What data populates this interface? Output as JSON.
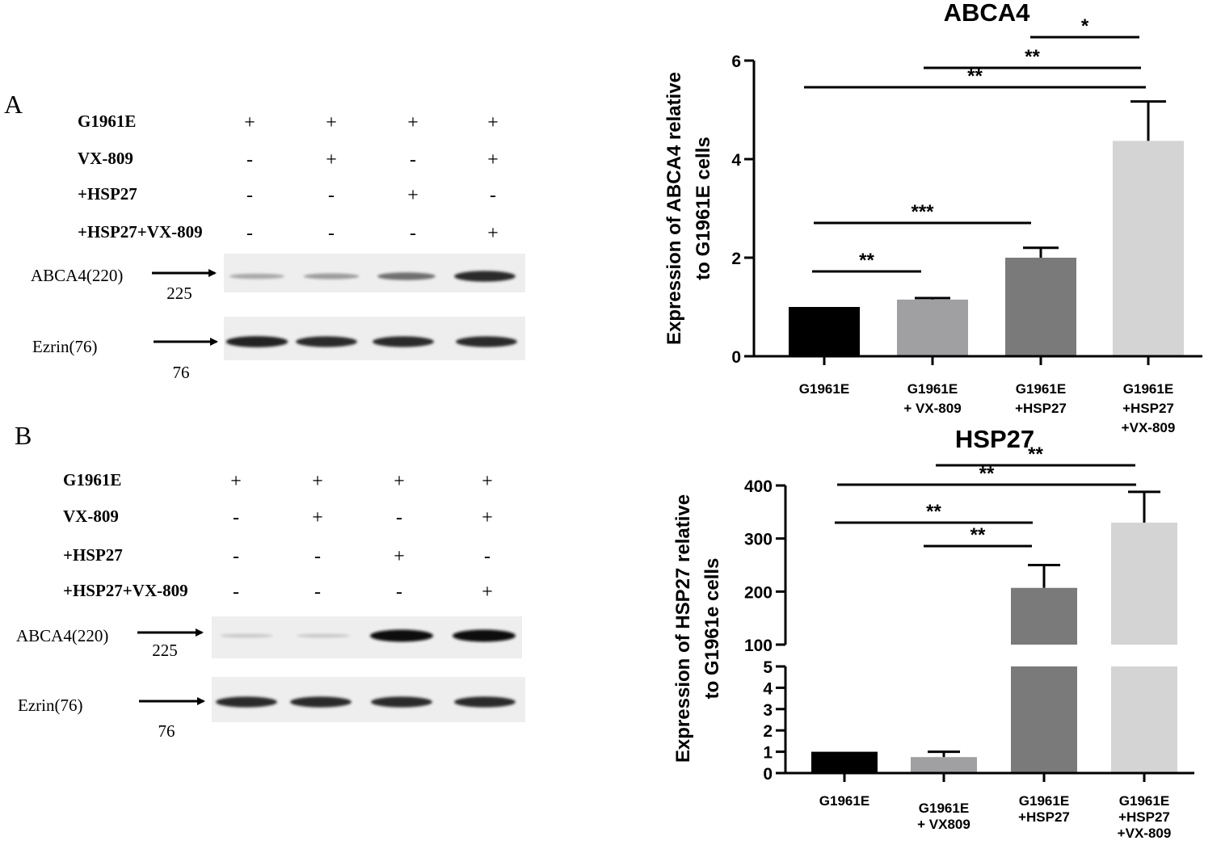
{
  "panels": {
    "A": {
      "letter": "A",
      "conditions": [
        {
          "label": "G1961E",
          "signs": [
            "+",
            "+",
            "+",
            "+"
          ]
        },
        {
          "label": "VX-809",
          "signs": [
            "-",
            "+",
            "-",
            "+"
          ]
        },
        {
          "label": "+HSP27",
          "signs": [
            "-",
            "-",
            "+",
            "-"
          ]
        },
        {
          "label": "+HSP27+VX-809",
          "signs": [
            "-",
            "-",
            "-",
            "+"
          ]
        }
      ],
      "blots": [
        {
          "label": "ABCA4(220)",
          "marker": "225",
          "band_intensity": [
            0.3,
            0.35,
            0.55,
            0.85
          ]
        },
        {
          "label": "Ezrin(76)",
          "marker": "76",
          "band_intensity": [
            0.9,
            0.85,
            0.85,
            0.85
          ]
        }
      ]
    },
    "B": {
      "letter": "B",
      "conditions": [
        {
          "label": "G1961E",
          "signs": [
            "+",
            "+",
            "+",
            "+"
          ]
        },
        {
          "label": "VX-809",
          "signs": [
            "-",
            "+",
            "-",
            "+"
          ]
        },
        {
          "label": "+HSP27",
          "signs": [
            "-",
            "-",
            "+",
            "-"
          ]
        },
        {
          "label": "+HSP27+VX-809",
          "signs": [
            "-",
            "-",
            "-",
            "+"
          ]
        }
      ],
      "blots": [
        {
          "label": "ABCA4(220)",
          "marker": "225",
          "band_intensity": [
            0.15,
            0.15,
            1.0,
            1.0
          ]
        },
        {
          "label": "Ezrin(76)",
          "marker": "76",
          "band_intensity": [
            0.85,
            0.85,
            0.85,
            0.85
          ]
        }
      ]
    }
  },
  "chart_data": [
    {
      "type": "bar",
      "title": "ABCA4",
      "ylabel": [
        "Expression of ABCA4 relative",
        "to G1961E cells"
      ],
      "categories": [
        [
          "G1961E"
        ],
        [
          "G1961E",
          "+ VX-809"
        ],
        [
          "G1961E",
          "+HSP27"
        ],
        [
          "G1961E",
          "+HSP27",
          "+VX-809"
        ]
      ],
      "values": [
        1.0,
        1.15,
        2.0,
        4.37
      ],
      "errors": [
        0.0,
        0.03,
        0.2,
        0.8
      ],
      "colors": [
        "#000000",
        "#a0a0a2",
        "#7a7a7a",
        "#d4d4d4"
      ],
      "ylim": [
        0,
        6
      ],
      "yticks": [
        0,
        2,
        4,
        6
      ],
      "significance": [
        {
          "from": 0,
          "to": 1,
          "label": "**"
        },
        {
          "from": 0,
          "to": 2,
          "label": "***"
        },
        {
          "from": 0,
          "to": 3,
          "label": "**"
        },
        {
          "from": 1,
          "to": 3,
          "label": "**"
        },
        {
          "from": 2,
          "to": 3,
          "label": "*"
        }
      ]
    },
    {
      "type": "bar",
      "title": "HSP27",
      "ylabel": [
        "Expression of HSP27 relative",
        "to G1961e cells"
      ],
      "categories": [
        [
          "G1961E"
        ],
        [
          "G1961E",
          "+ VX809"
        ],
        [
          "G1961E",
          "+HSP27"
        ],
        [
          "G1961E",
          "+HSP27",
          "+VX-809"
        ]
      ],
      "values": [
        1.0,
        0.75,
        207,
        330
      ],
      "errors": [
        0.0,
        0.25,
        43,
        58
      ],
      "colors": [
        "#000000",
        "#a0a0a2",
        "#7a7a7a",
        "#d4d4d4"
      ],
      "axis_break": {
        "lower": [
          0,
          5
        ],
        "upper": [
          100,
          400
        ]
      },
      "yticks_lower": [
        0,
        1,
        2,
        3,
        4,
        5
      ],
      "yticks_upper": [
        100,
        200,
        300,
        400
      ],
      "significance": [
        {
          "from": 1,
          "to": 2,
          "label": "**"
        },
        {
          "from": 0,
          "to": 2,
          "label": "**"
        },
        {
          "from": 0,
          "to": 3,
          "label": "**"
        },
        {
          "from": 1,
          "to": 3,
          "label": "**"
        }
      ]
    }
  ]
}
